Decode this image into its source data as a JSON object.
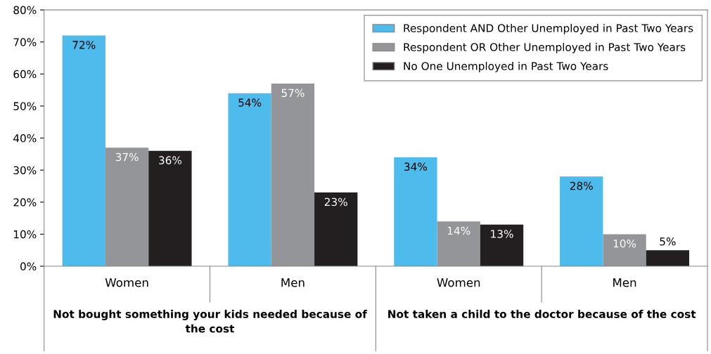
{
  "chart_data": {
    "type": "bar",
    "categories": [
      "Women",
      "Men",
      "Women",
      "Men"
    ],
    "series": [
      {
        "name": "Respondent AND Other Unemployed in Past Two Years",
        "color": "#4dbbeb",
        "values": [
          72,
          54,
          34,
          28
        ]
      },
      {
        "name": "Respondent OR Other Unemployed in Past Two Years",
        "color": "#939598",
        "values": [
          37,
          57,
          14,
          10
        ]
      },
      {
        "name": "No One Unemployed in Past Two Years",
        "color": "#231f20",
        "values": [
          36,
          23,
          13,
          5
        ]
      }
    ],
    "ylim": [
      0,
      80
    ],
    "yticks": [
      {
        "value": 0,
        "label": "0%"
      },
      {
        "value": 10,
        "label": "10%"
      },
      {
        "value": 20,
        "label": "20%"
      },
      {
        "value": 30,
        "label": "30%"
      },
      {
        "value": 40,
        "label": "40%"
      },
      {
        "value": 50,
        "label": "50%"
      },
      {
        "value": 60,
        "label": "60%"
      },
      {
        "value": 70,
        "label": "70%"
      },
      {
        "value": 80,
        "label": "80%"
      }
    ],
    "value_labels": [
      [
        "72%",
        "54%",
        "34%",
        "28%"
      ],
      [
        "37%",
        "57%",
        "14%",
        "10%"
      ],
      [
        "36%",
        "23%",
        "13%",
        "5%"
      ]
    ],
    "annotations": [
      "Not bought something your kids needed because of the cost",
      "Not taken a child to the doctor because of the cost"
    ],
    "grid": false,
    "legend": "top right"
  }
}
